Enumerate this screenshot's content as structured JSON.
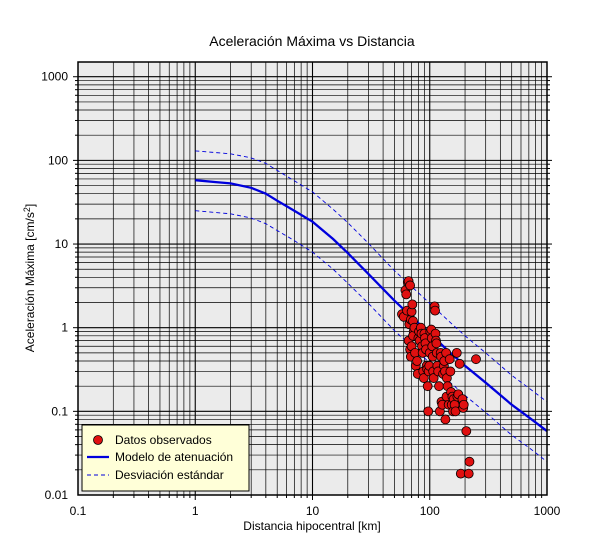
{
  "chart_data": {
    "type": "scatter",
    "title": "Aceleración Máxima vs Distancia",
    "xlabel": "Distancia hipocentral [km]",
    "ylabel_main": "Aceleración Máxima [cm/s",
    "ylabel_sup": "2",
    "ylabel_end": "]",
    "x_scale": "log",
    "y_scale": "log",
    "xlim": [
      0.1,
      1000
    ],
    "ylim": [
      0.01,
      1500
    ],
    "grid": true,
    "legend_position": "bottom-left",
    "x_ticks": [
      {
        "value": 0.1,
        "label": "0.1"
      },
      {
        "value": 1,
        "label": "1"
      },
      {
        "value": 10,
        "label": "10"
      },
      {
        "value": 100,
        "label": "100"
      },
      {
        "value": 1000,
        "label": "1000"
      }
    ],
    "y_ticks": [
      {
        "value": 0.01,
        "label": "0.01"
      },
      {
        "value": 0.1,
        "label": "0.1"
      },
      {
        "value": 1,
        "label": "1"
      },
      {
        "value": 10,
        "label": "10"
      },
      {
        "value": 100,
        "label": "100"
      },
      {
        "value": 1000,
        "label": "1000"
      }
    ],
    "colors": {
      "plot_background": "#ebebeb",
      "grid": "#000000",
      "points_fill": "#e01010",
      "points_stroke": "#000000",
      "model": "#0000dd",
      "std": "#0000dd",
      "legend_background": "#ffffd8"
    },
    "series": [
      {
        "name": "Datos observados",
        "kind": "points",
        "points": [
          [
            58,
            1.45
          ],
          [
            60,
            1.35
          ],
          [
            62,
            2.8
          ],
          [
            63,
            2.5
          ],
          [
            64,
            1.6
          ],
          [
            65,
            3.5
          ],
          [
            66,
            3.6
          ],
          [
            67,
            1.1
          ],
          [
            68,
            3.2
          ],
          [
            69,
            1.25
          ],
          [
            70,
            1.55
          ],
          [
            71,
            1.9
          ],
          [
            72,
            1.2
          ],
          [
            73,
            0.9
          ],
          [
            66,
            0.7
          ],
          [
            68,
            0.55
          ],
          [
            69,
            0.45
          ],
          [
            70,
            0.6
          ],
          [
            72,
            0.8
          ],
          [
            74,
            1.0
          ],
          [
            75,
            0.5
          ],
          [
            76,
            0.35
          ],
          [
            78,
            0.4
          ],
          [
            79,
            0.28
          ],
          [
            80,
            0.75
          ],
          [
            81,
            0.9
          ],
          [
            82,
            0.7
          ],
          [
            84,
            1.0
          ],
          [
            85,
            0.85
          ],
          [
            86,
            0.6
          ],
          [
            87,
            0.5
          ],
          [
            88,
            0.3
          ],
          [
            89,
            0.25
          ],
          [
            90,
            0.85
          ],
          [
            91,
            0.75
          ],
          [
            92,
            0.65
          ],
          [
            93,
            0.55
          ],
          [
            94,
            0.35
          ],
          [
            95,
            0.32
          ],
          [
            96,
            0.2
          ],
          [
            97,
            0.1
          ],
          [
            98,
            0.3
          ],
          [
            99,
            0.35
          ],
          [
            100,
            0.5
          ],
          [
            101,
            0.9
          ],
          [
            103,
            0.95
          ],
          [
            104,
            0.75
          ],
          [
            105,
            0.6
          ],
          [
            106,
            0.45
          ],
          [
            107,
            0.3
          ],
          [
            108,
            0.25
          ],
          [
            110,
            1.8
          ],
          [
            111,
            1.6
          ],
          [
            112,
            0.85
          ],
          [
            113,
            0.7
          ],
          [
            114,
            0.65
          ],
          [
            115,
            0.5
          ],
          [
            116,
            0.35
          ],
          [
            118,
            0.3
          ],
          [
            120,
            0.2
          ],
          [
            122,
            0.1
          ],
          [
            124,
            0.5
          ],
          [
            125,
            0.45
          ],
          [
            126,
            0.13
          ],
          [
            128,
            0.12
          ],
          [
            130,
            0.28
          ],
          [
            132,
            0.35
          ],
          [
            133,
            0.4
          ],
          [
            135,
            0.3
          ],
          [
            136,
            0.08
          ],
          [
            138,
            0.5
          ],
          [
            139,
            0.15
          ],
          [
            140,
            0.25
          ],
          [
            142,
            0.2
          ],
          [
            145,
            0.12
          ],
          [
            148,
            0.42
          ],
          [
            150,
            0.3
          ],
          [
            152,
            0.17
          ],
          [
            154,
            0.12
          ],
          [
            156,
            0.15
          ],
          [
            158,
            0.1
          ],
          [
            160,
            0.14
          ],
          [
            163,
            0.12
          ],
          [
            166,
            0.1
          ],
          [
            170,
            0.5
          ],
          [
            172,
            0.15
          ],
          [
            175,
            0.16
          ],
          [
            180,
            0.37
          ],
          [
            184,
            0.018
          ],
          [
            190,
            0.14
          ],
          [
            193,
            0.11
          ],
          [
            195,
            0.12
          ],
          [
            205,
            0.058
          ],
          [
            215,
            0.018
          ],
          [
            218,
            0.025
          ],
          [
            248,
            0.42
          ]
        ]
      },
      {
        "name": "Modelo de atenuación",
        "kind": "line",
        "points": [
          [
            1,
            58
          ],
          [
            1.5,
            55
          ],
          [
            2,
            53
          ],
          [
            3,
            47
          ],
          [
            4,
            40
          ],
          [
            5,
            33
          ],
          [
            7,
            25
          ],
          [
            10,
            18.5
          ],
          [
            15,
            11.5
          ],
          [
            20,
            7.8
          ],
          [
            30,
            4.4
          ],
          [
            50,
            2.1
          ],
          [
            70,
            1.35
          ],
          [
            100,
            0.85
          ],
          [
            150,
            0.5
          ],
          [
            200,
            0.35
          ],
          [
            300,
            0.22
          ],
          [
            500,
            0.12
          ],
          [
            700,
            0.085
          ],
          [
            1000,
            0.058
          ]
        ]
      },
      {
        "name": "Desviación estándar",
        "kind": "dashed",
        "points": [
          [
            1,
            130
          ],
          [
            2,
            120
          ],
          [
            3,
            107
          ],
          [
            4,
            92
          ],
          [
            5,
            76
          ],
          [
            7,
            57
          ],
          [
            10,
            42
          ],
          [
            15,
            26
          ],
          [
            20,
            18
          ],
          [
            30,
            10.2
          ],
          [
            50,
            4.8
          ],
          [
            70,
            3.1
          ],
          [
            100,
            1.95
          ],
          [
            150,
            1.15
          ],
          [
            200,
            0.8
          ],
          [
            300,
            0.5
          ],
          [
            500,
            0.27
          ],
          [
            700,
            0.19
          ],
          [
            1000,
            0.13
          ]
        ],
        "points_lower": [
          [
            1,
            25
          ],
          [
            2,
            23
          ],
          [
            3,
            20.5
          ],
          [
            4,
            17.5
          ],
          [
            5,
            14.5
          ],
          [
            7,
            11
          ],
          [
            10,
            8
          ],
          [
            15,
            5
          ],
          [
            20,
            3.4
          ],
          [
            30,
            1.95
          ],
          [
            50,
            0.92
          ],
          [
            70,
            0.6
          ],
          [
            100,
            0.38
          ],
          [
            150,
            0.22
          ],
          [
            200,
            0.155
          ],
          [
            300,
            0.097
          ],
          [
            500,
            0.052
          ],
          [
            700,
            0.037
          ],
          [
            1000,
            0.025
          ]
        ]
      }
    ]
  }
}
